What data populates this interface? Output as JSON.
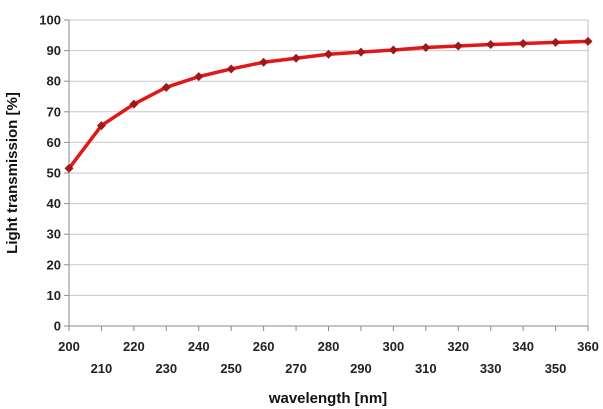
{
  "chart_data": {
    "type": "line",
    "title": "",
    "xlabel": "wavelength [nm]",
    "ylabel": "Light transmission  [%]",
    "xlim": [
      200,
      360
    ],
    "ylim": [
      0,
      100
    ],
    "x_ticks": [
      200,
      210,
      220,
      230,
      240,
      250,
      260,
      270,
      280,
      290,
      300,
      310,
      320,
      330,
      340,
      350,
      360
    ],
    "y_ticks": [
      0,
      10,
      20,
      30,
      40,
      50,
      60,
      70,
      80,
      90,
      100
    ],
    "grid": "horizontal",
    "legend": "none",
    "series": [
      {
        "color": "#e01818",
        "marker_color": "#a01818",
        "x": [
          200,
          210,
          220,
          230,
          240,
          250,
          260,
          270,
          280,
          290,
          300,
          310,
          320,
          330,
          340,
          350,
          360
        ],
        "y": [
          51.5,
          65.5,
          72.5,
          78,
          81.5,
          84,
          86.2,
          87.5,
          88.8,
          89.5,
          90.2,
          91,
          91.5,
          92,
          92.3,
          92.7,
          93
        ]
      }
    ]
  }
}
